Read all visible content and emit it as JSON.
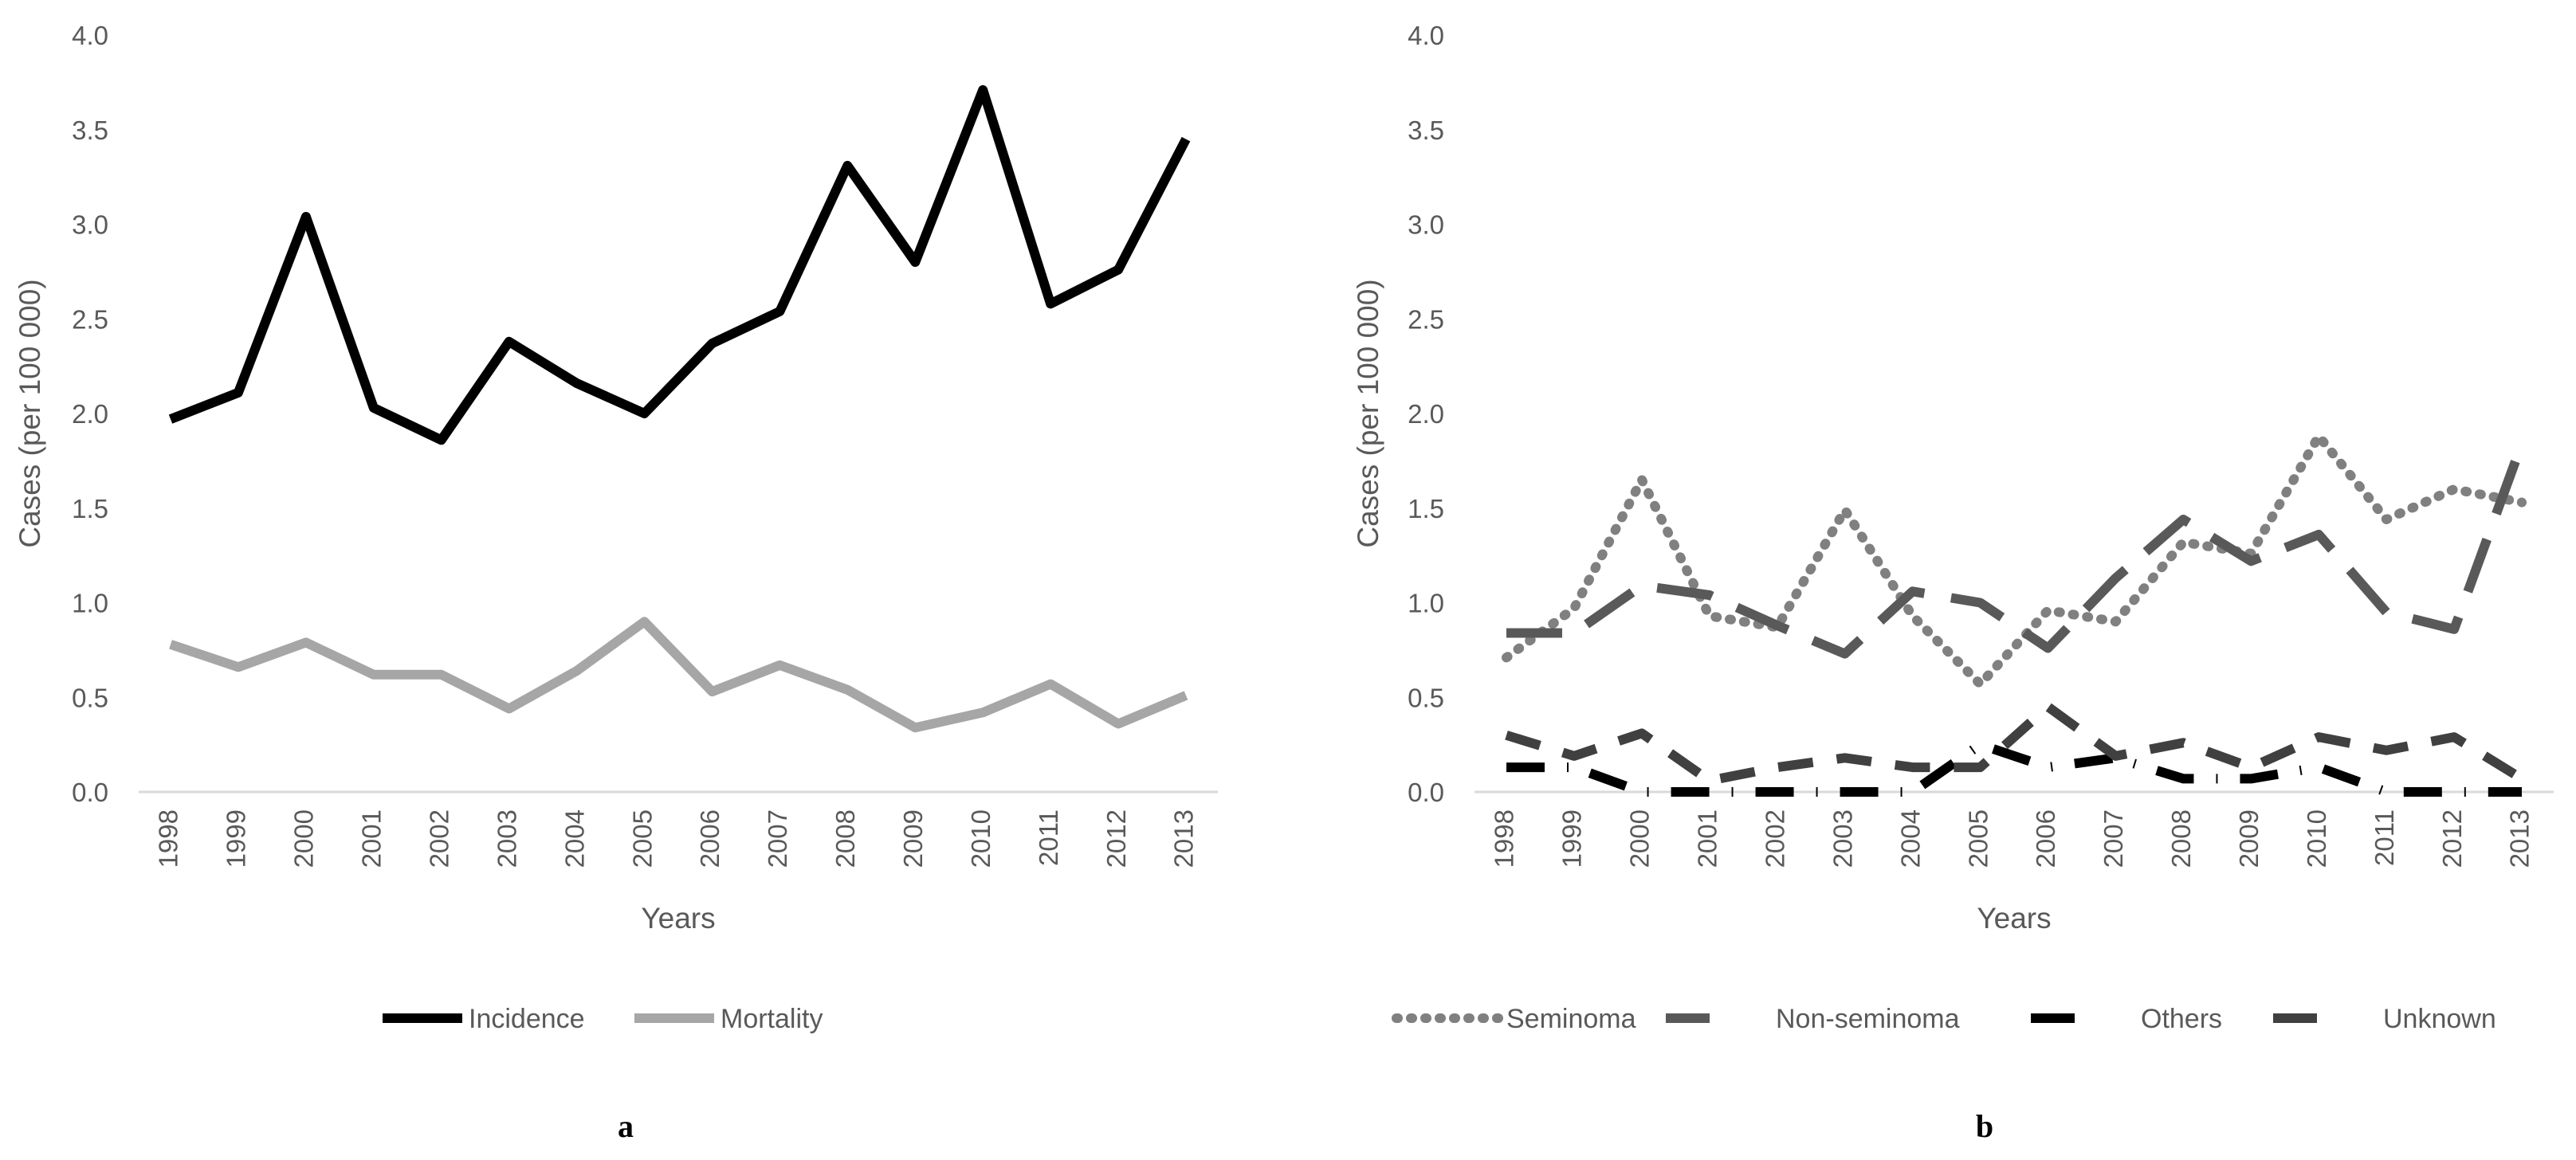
{
  "figure": {
    "panel_labels": [
      "a",
      "b"
    ]
  },
  "chart_data": [
    {
      "type": "line",
      "panel": "a",
      "title": "",
      "xlabel": "Years",
      "ylabel": "Cases (per 100 000)",
      "ylim": [
        0,
        4
      ],
      "y_ticks": [
        "0.0",
        "0.5",
        "1.0",
        "1.5",
        "2.0",
        "2.5",
        "3.0",
        "3.5",
        "4.0"
      ],
      "categories": [
        "1998",
        "1999",
        "2000",
        "2001",
        "2002",
        "2003",
        "2004",
        "2005",
        "2006",
        "2007",
        "2008",
        "2009",
        "2010",
        "2011",
        "2012",
        "2013"
      ],
      "grid": false,
      "legend": "bottom",
      "series": [
        {
          "name": "Incidence",
          "color": "#000000",
          "style": "solid",
          "values": [
            1.97,
            2.11,
            3.04,
            2.03,
            1.86,
            2.38,
            2.16,
            2.0,
            2.37,
            2.54,
            3.31,
            2.8,
            3.71,
            2.58,
            2.76,
            3.45
          ]
        },
        {
          "name": "Mortality",
          "color": "#a6a6a6",
          "style": "solid",
          "values": [
            0.78,
            0.66,
            0.79,
            0.62,
            0.62,
            0.44,
            0.64,
            0.9,
            0.53,
            0.67,
            0.54,
            0.34,
            0.42,
            0.57,
            0.36,
            0.51
          ]
        }
      ]
    },
    {
      "type": "line",
      "panel": "b",
      "title": "",
      "xlabel": "Years",
      "ylabel": "Cases (per 100 000)",
      "ylim": [
        0,
        4
      ],
      "y_ticks": [
        "0.0",
        "0.5",
        "1.0",
        "1.5",
        "2.0",
        "2.5",
        "3.0",
        "3.5",
        "4.0"
      ],
      "categories": [
        "1998",
        "1999",
        "2000",
        "2001",
        "2002",
        "2003",
        "2004",
        "2005",
        "2006",
        "2007",
        "2008",
        "2009",
        "2010",
        "2011",
        "2012",
        "2013"
      ],
      "grid": false,
      "legend": "bottom",
      "series": [
        {
          "name": "Seminoma",
          "color": "#808080",
          "style": "dotted",
          "values": [
            0.71,
            0.97,
            1.65,
            0.93,
            0.87,
            1.49,
            0.93,
            0.57,
            0.96,
            0.9,
            1.32,
            1.26,
            1.88,
            1.44,
            1.6,
            1.53
          ]
        },
        {
          "name": "Non-seminoma",
          "color": "#595959",
          "style": "longdash",
          "values": [
            0.84,
            0.84,
            1.09,
            1.04,
            0.88,
            0.73,
            1.06,
            1.0,
            0.76,
            1.13,
            1.44,
            1.22,
            1.36,
            0.95,
            0.86,
            1.84
          ]
        },
        {
          "name": "Others",
          "color": "#000000",
          "style": "dashdot",
          "values": [
            0.13,
            0.13,
            0.0,
            0.0,
            0.0,
            0.0,
            0.0,
            0.25,
            0.13,
            0.18,
            0.07,
            0.07,
            0.13,
            0.0,
            0.0,
            0.0
          ]
        },
        {
          "name": "Unknown",
          "color": "#404040",
          "style": "dash",
          "values": [
            0.3,
            0.19,
            0.31,
            0.06,
            0.13,
            0.18,
            0.13,
            0.13,
            0.45,
            0.19,
            0.26,
            0.13,
            0.29,
            0.22,
            0.29,
            0.07
          ]
        }
      ]
    }
  ]
}
